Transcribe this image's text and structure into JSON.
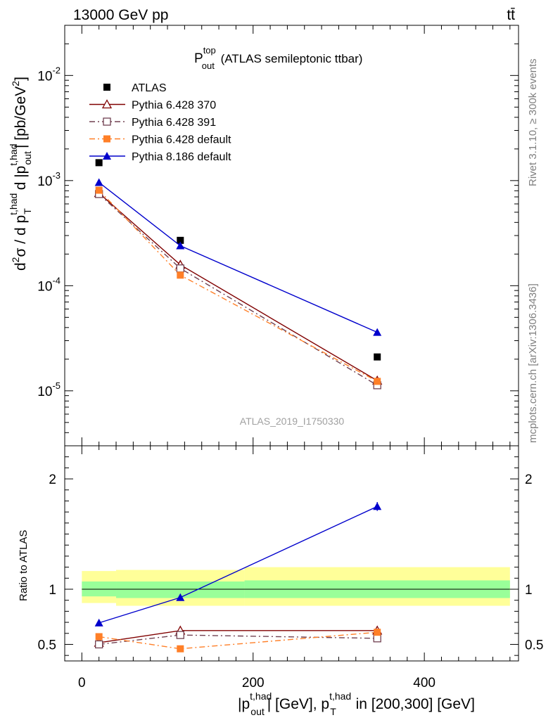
{
  "header": {
    "left": "13000 GeV pp",
    "right": "tt̄"
  },
  "side": {
    "rivet": "Rivet 3.1.10, ≥ 300k events",
    "mcplots": "mcplots.cern.ch [arXiv:1306.3436]"
  },
  "title": {
    "main": "P",
    "sup": "top",
    "sub": "out",
    "rest": " (ATLAS semileptonic ttbar)"
  },
  "watermark": "ATLAS_2019_I1750330",
  "axis_labels": {
    "y_top": "d²σ / d p_T^{t,had} d |p_out^{t,had}| [pb/GeV²]",
    "y_bottom": "Ratio to ATLAS",
    "x": "|p_out^{t,had}| [GeV], p_T^{t,had} in [200,300] [GeV]"
  },
  "legend": [
    {
      "label": "ATLAS",
      "color": "#000000",
      "marker": "filled-square",
      "line": "none"
    },
    {
      "label": "Pythia 6.428 370",
      "color": "#800000",
      "marker": "open-triangle",
      "line": "solid"
    },
    {
      "label": "Pythia 6.428 391",
      "color": "#704050",
      "marker": "open-square",
      "line": "dashdot"
    },
    {
      "label": "Pythia 6.428 default",
      "color": "#ff7f27",
      "marker": "filled-square",
      "line": "dashdot"
    },
    {
      "label": "Pythia 8.186 default",
      "color": "#0000cc",
      "marker": "filled-triangle",
      "line": "solid"
    }
  ],
  "chart_data": [
    {
      "type": "line",
      "panel": "main",
      "yscale": "log",
      "xlim": [
        -20,
        510
      ],
      "ylim": [
        3e-06,
        0.03
      ],
      "y_ticks": [
        {
          "value": 1e-05,
          "label": "10^-5"
        },
        {
          "value": 0.0001,
          "label": "10^-4"
        },
        {
          "value": 0.001,
          "label": "10^-3"
        },
        {
          "value": 0.01,
          "label": "10^-2"
        }
      ],
      "x": [
        20,
        115,
        345
      ],
      "series": [
        {
          "name": "ATLAS",
          "values": [
            0.00148,
            0.00027,
            2.1e-05
          ],
          "color": "#000000"
        },
        {
          "name": "Pythia 6.428 370",
          "values": [
            0.00076,
            0.000158,
            1.25e-05
          ],
          "color": "#800000"
        },
        {
          "name": "Pythia 6.428 391",
          "values": [
            0.000745,
            0.000146,
            1.13e-05
          ],
          "color": "#704050"
        },
        {
          "name": "Pythia 6.428 default",
          "values": [
            0.00081,
            0.000126,
            1.23e-05
          ],
          "color": "#ff7f27"
        },
        {
          "name": "Pythia 8.186 default",
          "values": [
            0.00096,
            0.00024,
            3.6e-05
          ],
          "color": "#0000cc"
        }
      ]
    },
    {
      "type": "line",
      "panel": "ratio",
      "xlim": [
        -20,
        510
      ],
      "ylim": [
        0.35,
        2.3
      ],
      "y_ticks": [
        {
          "value": 0.5,
          "label": "0.5"
        },
        {
          "value": 1,
          "label": "1"
        },
        {
          "value": 2,
          "label": "2"
        }
      ],
      "x_ticks": [
        {
          "value": 0,
          "label": "0"
        },
        {
          "value": 200,
          "label": "200"
        },
        {
          "value": 400,
          "label": "400"
        }
      ],
      "x": [
        20,
        115,
        345
      ],
      "bands": {
        "edges": [
          0,
          40,
          190,
          500
        ],
        "yellow": [
          [
            0.875,
            1.165
          ],
          [
            0.85,
            1.175
          ],
          [
            0.85,
            1.2
          ]
        ],
        "green": [
          [
            0.935,
            1.07
          ],
          [
            0.92,
            1.07
          ],
          [
            0.92,
            1.08
          ]
        ]
      },
      "series": [
        {
          "name": "Pythia 6.428 370",
          "values": [
            0.515,
            0.625,
            0.625
          ],
          "color": "#800000"
        },
        {
          "name": "Pythia 6.428 391",
          "values": [
            0.5,
            0.585,
            0.555
          ],
          "color": "#704050"
        },
        {
          "name": "Pythia 6.428 default",
          "values": [
            0.57,
            0.46,
            0.61
          ],
          "color": "#ff7f27"
        },
        {
          "name": "Pythia 8.186 default",
          "values": [
            0.695,
            0.925,
            1.75
          ],
          "color": "#0000cc",
          "errors": [
            0,
            0,
            0.04
          ]
        }
      ]
    }
  ]
}
